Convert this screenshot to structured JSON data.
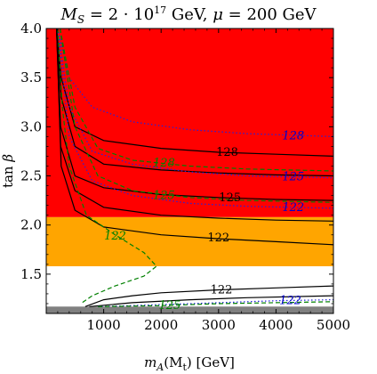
{
  "chart_data": {
    "type": "contour",
    "title": "M_S = 2·10^17 GeV, μ = 200 GeV",
    "title_parts": {
      "ms_sym": "M",
      "ms_sub": "S",
      "ms_value": " = 2 · 10",
      "ms_exp": "17",
      "ms_unit": " GeV, ",
      "mu_sym": "μ",
      "mu_value": " = 200 GeV"
    },
    "xlabel": "m_A(M_t) [GeV]",
    "xlabel_parts": {
      "sym": "m",
      "sub": "A",
      "arg": "(M",
      "arg_sub": "t",
      "rest": ") [GeV]"
    },
    "ylabel": "tan β",
    "ylabel_parts": {
      "fn": "tan",
      "sym": "β"
    },
    "xlim": [
      0,
      5000
    ],
    "ylim": [
      1.1,
      4.0
    ],
    "x_ticks": [
      "1000",
      "2000",
      "3000",
      "4000",
      "5000"
    ],
    "y_ticks": [
      "1.5",
      "2.0",
      "2.5",
      "3.0",
      "3.5",
      "4.0"
    ],
    "regions": [
      {
        "name": "excluded-red",
        "color": "#ff0000",
        "y_from": 2.08,
        "y_to": 4.0
      },
      {
        "name": "excluded-orange",
        "color": "#ffa500",
        "y_from": 1.58,
        "y_to": 2.08
      },
      {
        "name": "allowed-white",
        "color": "#ffffff",
        "y_from": 1.17,
        "y_to": 1.58
      },
      {
        "name": "gray-band",
        "color": "#808080",
        "y_from": 1.1,
        "y_to": 1.17
      }
    ],
    "contours_black": [
      {
        "label": "128",
        "points": [
          [
            180,
            4.0
          ],
          [
            260,
            3.5
          ],
          [
            500,
            3.0
          ],
          [
            1000,
            2.86
          ],
          [
            2000,
            2.78
          ],
          [
            3000,
            2.74
          ],
          [
            4000,
            2.72
          ],
          [
            5000,
            2.7
          ]
        ]
      },
      {
        "label": "",
        "points": [
          [
            180,
            4.0
          ],
          [
            260,
            3.3
          ],
          [
            500,
            2.8
          ],
          [
            1000,
            2.62
          ],
          [
            2000,
            2.56
          ],
          [
            3000,
            2.53
          ],
          [
            4000,
            2.51
          ],
          [
            5000,
            2.5
          ]
        ]
      },
      {
        "label": "125",
        "points": [
          [
            180,
            4.0
          ],
          [
            250,
            3.0
          ],
          [
            500,
            2.5
          ],
          [
            1000,
            2.38
          ],
          [
            2000,
            2.31
          ],
          [
            3000,
            2.28
          ],
          [
            4000,
            2.26
          ],
          [
            5000,
            2.25
          ]
        ]
      },
      {
        "label": "",
        "points": [
          [
            180,
            4.0
          ],
          [
            250,
            2.8
          ],
          [
            500,
            2.35
          ],
          [
            1000,
            2.18
          ],
          [
            2000,
            2.1
          ],
          [
            3000,
            2.07
          ],
          [
            4000,
            2.05
          ],
          [
            5000,
            2.04
          ]
        ]
      },
      {
        "label": "122",
        "points": [
          [
            180,
            4.0
          ],
          [
            260,
            2.6
          ],
          [
            500,
            2.15
          ],
          [
            1000,
            1.98
          ],
          [
            2000,
            1.9
          ],
          [
            3000,
            1.86
          ],
          [
            4000,
            1.83
          ],
          [
            5000,
            1.8
          ]
        ]
      },
      {
        "label": "122",
        "points": [
          [
            680,
            1.17
          ],
          [
            1000,
            1.24
          ],
          [
            1500,
            1.28
          ],
          [
            2000,
            1.31
          ],
          [
            3000,
            1.34
          ],
          [
            4000,
            1.36
          ],
          [
            5000,
            1.38
          ]
        ]
      },
      {
        "label": "",
        "points": [
          [
            750,
            1.17
          ],
          [
            1500,
            1.21
          ],
          [
            2500,
            1.24
          ],
          [
            3500,
            1.26
          ],
          [
            5000,
            1.28
          ]
        ]
      }
    ],
    "contours_blue_dotted": [
      {
        "label": "128",
        "points": [
          [
            200,
            4.0
          ],
          [
            400,
            3.5
          ],
          [
            800,
            3.2
          ],
          [
            1500,
            3.05
          ],
          [
            2500,
            2.97
          ],
          [
            3500,
            2.93
          ],
          [
            5000,
            2.9
          ]
        ]
      },
      {
        "label": "125",
        "points": [
          [
            200,
            4.0
          ],
          [
            400,
            3.2
          ],
          [
            800,
            2.75
          ],
          [
            1500,
            2.62
          ],
          [
            2500,
            2.54
          ],
          [
            3500,
            2.5
          ],
          [
            5000,
            2.48
          ]
        ]
      },
      {
        "label": "122",
        "points": [
          [
            200,
            4.0
          ],
          [
            400,
            2.9
          ],
          [
            800,
            2.45
          ],
          [
            1500,
            2.3
          ],
          [
            2500,
            2.22
          ],
          [
            3500,
            2.19
          ],
          [
            5000,
            2.17
          ]
        ]
      },
      {
        "label": "122",
        "points": [
          [
            900,
            1.17
          ],
          [
            2000,
            1.19
          ],
          [
            3000,
            1.21
          ],
          [
            4000,
            1.23
          ],
          [
            5000,
            1.24
          ]
        ]
      }
    ],
    "contours_green_dashed": [
      {
        "label": "128",
        "points": [
          [
            240,
            4.0
          ],
          [
            500,
            3.2
          ],
          [
            900,
            2.78
          ],
          [
            1500,
            2.66
          ],
          [
            2500,
            2.6
          ],
          [
            3500,
            2.57
          ],
          [
            5000,
            2.55
          ]
        ]
      },
      {
        "label": "125",
        "points": [
          [
            240,
            4.0
          ],
          [
            500,
            3.0
          ],
          [
            900,
            2.5
          ],
          [
            1500,
            2.35
          ],
          [
            2500,
            2.28
          ],
          [
            3500,
            2.25
          ],
          [
            5000,
            2.23
          ]
        ]
      },
      {
        "label": "122",
        "points": [
          [
            200,
            4.0
          ],
          [
            280,
            3.2
          ],
          [
            400,
            2.6
          ],
          [
            700,
            2.1
          ],
          [
            1200,
            1.9
          ],
          [
            1700,
            1.72
          ],
          [
            1920,
            1.58
          ],
          [
            1700,
            1.48
          ],
          [
            1200,
            1.38
          ],
          [
            800,
            1.28
          ],
          [
            600,
            1.2
          ]
        ]
      },
      {
        "label": "125",
        "points": [
          [
            900,
            1.17
          ],
          [
            2000,
            1.18
          ],
          [
            3000,
            1.2
          ],
          [
            4000,
            1.21
          ],
          [
            5000,
            1.22
          ]
        ]
      }
    ],
    "contour_labels": [
      {
        "text": "128",
        "x": 3150,
        "y": 2.74,
        "color": "#000000"
      },
      {
        "text": "125",
        "x": 3200,
        "y": 2.28,
        "color": "#000000"
      },
      {
        "text": "122",
        "x": 3000,
        "y": 1.87,
        "color": "#000000"
      },
      {
        "text": "122",
        "x": 3050,
        "y": 1.34,
        "color": "#000000"
      },
      {
        "text": "128",
        "x": 4300,
        "y": 2.91,
        "color": "#0000cc"
      },
      {
        "text": "125",
        "x": 4300,
        "y": 2.49,
        "color": "#0000cc"
      },
      {
        "text": "122",
        "x": 4300,
        "y": 2.18,
        "color": "#0000cc"
      },
      {
        "text": "122",
        "x": 4250,
        "y": 1.23,
        "color": "#0000cc"
      },
      {
        "text": "128",
        "x": 2050,
        "y": 2.63,
        "color": "#008000"
      },
      {
        "text": "125",
        "x": 2050,
        "y": 2.3,
        "color": "#008000"
      },
      {
        "text": "122",
        "x": 1200,
        "y": 1.89,
        "color": "#008000"
      },
      {
        "text": "125",
        "x": 2150,
        "y": 1.18,
        "color": "#008000"
      }
    ]
  }
}
